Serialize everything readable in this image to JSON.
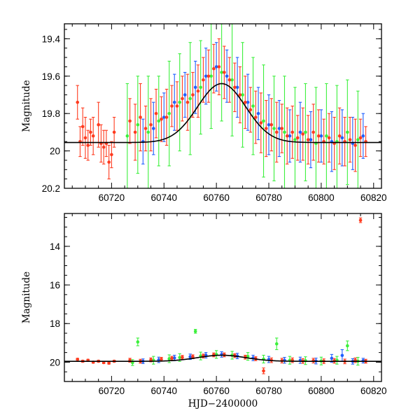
{
  "chart_data": [
    {
      "type": "scatter",
      "xlabel": "",
      "ylabel": "Magnitude",
      "xlim": [
        60702,
        60823
      ],
      "ylim": [
        20.2,
        19.32
      ],
      "y_inverted": true,
      "x_ticks": [
        60720,
        60740,
        60760,
        60780,
        60800,
        60820
      ],
      "y_ticks": [
        19.4,
        19.6,
        19.8,
        20,
        20.2
      ],
      "y_tick_labels": [
        "19.4",
        "19.6",
        "19.8",
        "20",
        "20.2"
      ],
      "grid": false,
      "legend": "none",
      "model_curve": {
        "color": "#000000",
        "peak_x": 60762,
        "peak_mag": 19.64,
        "base_mag": 19.955,
        "width_days": 13
      },
      "series": [
        {
          "color": "#ff3b1f",
          "points": [
            [
              60707,
              19.74,
              0.09
            ],
            [
              60708,
              19.95,
              0.08
            ],
            [
              60709,
              19.87,
              0.1
            ],
            [
              60710,
              19.93,
              0.11
            ],
            [
              60711,
              19.97,
              0.08
            ],
            [
              60712,
              19.9,
              0.07
            ],
            [
              60713,
              19.92,
              0.1
            ],
            [
              60715,
              19.86,
              0.12
            ],
            [
              60716,
              19.96,
              0.1
            ],
            [
              60717,
              19.98,
              0.09
            ],
            [
              60718,
              19.96,
              0.07
            ],
            [
              60719,
              20.06,
              0.09
            ],
            [
              60720,
              20.02,
              0.07
            ],
            [
              60721,
              19.9,
              0.08
            ],
            [
              60727,
              19.84,
              0.12
            ],
            [
              60729,
              19.9,
              0.15
            ],
            [
              60731,
              19.82,
              0.18
            ],
            [
              60733,
              19.88,
              0.12
            ],
            [
              60735,
              19.86,
              0.14
            ],
            [
              60737,
              19.8,
              0.13
            ],
            [
              60739,
              19.83,
              0.12
            ],
            [
              60741,
              19.82,
              0.15
            ],
            [
              60743,
              19.76,
              0.11
            ],
            [
              60745,
              19.76,
              0.13
            ],
            [
              60747,
              19.72,
              0.12
            ],
            [
              60749,
              19.74,
              0.15
            ],
            [
              60751,
              19.7,
              0.12
            ],
            [
              60753,
              19.68,
              0.14
            ],
            [
              60755,
              19.62,
              0.12
            ],
            [
              60757,
              19.6,
              0.14
            ],
            [
              60759,
              19.56,
              0.13
            ],
            [
              60761,
              19.55,
              0.15
            ],
            [
              60763,
              19.58,
              0.14
            ],
            [
              60765,
              19.62,
              0.12
            ],
            [
              60767,
              19.66,
              0.13
            ],
            [
              60769,
              19.7,
              0.15
            ],
            [
              60771,
              19.74,
              0.14
            ],
            [
              60773,
              19.78,
              0.12
            ],
            [
              60775,
              19.82,
              0.14
            ],
            [
              60777,
              19.85,
              0.16
            ],
            [
              60779,
              19.88,
              0.15
            ],
            [
              60781,
              19.86,
              0.14
            ],
            [
              60783,
              19.9,
              0.16
            ],
            [
              60785,
              19.88,
              0.13
            ],
            [
              60787,
              19.92,
              0.15
            ],
            [
              60789,
              19.9,
              0.14
            ],
            [
              60791,
              19.93,
              0.12
            ],
            [
              60793,
              19.91,
              0.14
            ],
            [
              60795,
              19.94,
              0.13
            ],
            [
              60797,
              19.9,
              0.15
            ],
            [
              60799,
              19.92,
              0.14
            ],
            [
              60801,
              19.95,
              0.12
            ],
            [
              60803,
              19.93,
              0.13
            ],
            [
              60805,
              19.96,
              0.14
            ],
            [
              60807,
              19.92,
              0.15
            ],
            [
              60809,
              19.95,
              0.13
            ],
            [
              60811,
              19.94,
              0.12
            ],
            [
              60813,
              19.97,
              0.14
            ],
            [
              60815,
              19.93,
              0.1
            ],
            [
              60817,
              19.95,
              0.08
            ]
          ]
        },
        {
          "color": "#1f5fff",
          "points": [
            [
              60732,
              19.95,
              0.12
            ],
            [
              60736,
              19.88,
              0.14
            ],
            [
              60740,
              19.82,
              0.13
            ],
            [
              60744,
              19.74,
              0.15
            ],
            [
              60748,
              19.7,
              0.12
            ],
            [
              60752,
              19.66,
              0.14
            ],
            [
              60756,
              19.6,
              0.15
            ],
            [
              60760,
              19.55,
              0.13
            ],
            [
              60764,
              19.6,
              0.14
            ],
            [
              60768,
              19.66,
              0.16
            ],
            [
              60772,
              19.74,
              0.15
            ],
            [
              60776,
              19.8,
              0.14
            ],
            [
              60780,
              19.86,
              0.16
            ],
            [
              60784,
              19.88,
              0.15
            ],
            [
              60788,
              19.92,
              0.14
            ],
            [
              60792,
              19.9,
              0.16
            ],
            [
              60796,
              19.94,
              0.15
            ],
            [
              60800,
              19.92,
              0.14
            ],
            [
              60804,
              19.95,
              0.16
            ],
            [
              60808,
              19.93,
              0.15
            ],
            [
              60812,
              19.96,
              0.14
            ],
            [
              60816,
              19.92,
              0.12
            ]
          ]
        },
        {
          "color": "#3cf03c",
          "points": [
            [
              60726,
              19.92,
              0.28
            ],
            [
              60730,
              19.86,
              0.26
            ],
            [
              60734,
              19.9,
              0.3
            ],
            [
              60738,
              19.84,
              0.24
            ],
            [
              60742,
              19.8,
              0.28
            ],
            [
              60746,
              19.74,
              0.26
            ],
            [
              60750,
              19.72,
              0.3
            ],
            [
              60754,
              19.66,
              0.25
            ],
            [
              60758,
              19.6,
              0.28
            ],
            [
              60762,
              19.58,
              0.26
            ],
            [
              60766,
              19.62,
              0.3
            ],
            [
              60770,
              19.7,
              0.28
            ],
            [
              60774,
              19.76,
              0.26
            ],
            [
              60778,
              19.84,
              0.3
            ],
            [
              60782,
              19.88,
              0.28
            ],
            [
              60786,
              19.9,
              0.3
            ],
            [
              60790,
              19.94,
              0.28
            ],
            [
              60794,
              19.9,
              0.26
            ],
            [
              60798,
              19.96,
              0.3
            ],
            [
              60802,
              19.92,
              0.28
            ],
            [
              60806,
              19.95,
              0.3
            ],
            [
              60810,
              19.9,
              0.28
            ],
            [
              60814,
              19.94,
              0.26
            ]
          ]
        }
      ]
    },
    {
      "type": "scatter",
      "xlabel": "HJD−2400000",
      "ylabel": "Magnitude",
      "xlim": [
        60702,
        60823
      ],
      "ylim": [
        21,
        12.3
      ],
      "y_inverted": true,
      "x_ticks": [
        60720,
        60740,
        60760,
        60780,
        60800,
        60820
      ],
      "y_ticks": [
        14,
        16,
        18,
        20
      ],
      "y_tick_labels": [
        "14",
        "16",
        "18",
        "20"
      ],
      "grid": false,
      "legend": "none",
      "model_curve": {
        "color": "#000000",
        "peak_x": 60762,
        "peak_mag": 19.64,
        "base_mag": 19.955,
        "width_days": 13
      },
      "series": [
        {
          "color": "#ff3b1f",
          "points": [
            [
              60707,
              19.85,
              0.05
            ],
            [
              60709,
              19.95,
              0.05
            ],
            [
              60711,
              19.9,
              0.05
            ],
            [
              60713,
              20,
              0.05
            ],
            [
              60715,
              19.95,
              0.05
            ],
            [
              60717,
              20.02,
              0.05
            ],
            [
              60719,
              20.05,
              0.05
            ],
            [
              60721,
              19.95,
              0.05
            ],
            [
              60727,
              19.9,
              0.1
            ],
            [
              60731,
              19.95,
              0.1
            ],
            [
              60735,
              19.88,
              0.1
            ],
            [
              60739,
              19.85,
              0.1
            ],
            [
              60743,
              19.8,
              0.1
            ],
            [
              60747,
              19.75,
              0.1
            ],
            [
              60751,
              19.72,
              0.1
            ],
            [
              60755,
              19.68,
              0.1
            ],
            [
              60759,
              19.62,
              0.1
            ],
            [
              60763,
              19.62,
              0.1
            ],
            [
              60767,
              19.66,
              0.1
            ],
            [
              60771,
              19.74,
              0.1
            ],
            [
              60775,
              19.82,
              0.1
            ],
            [
              60778,
              20.45,
              0.15
            ],
            [
              60781,
              19.9,
              0.12
            ],
            [
              60785,
              19.92,
              0.12
            ],
            [
              60789,
              19.9,
              0.12
            ],
            [
              60793,
              19.94,
              0.12
            ],
            [
              60797,
              19.92,
              0.12
            ],
            [
              60801,
              19.95,
              0.12
            ],
            [
              60805,
              19.93,
              0.12
            ],
            [
              60809,
              19.96,
              0.12
            ],
            [
              60813,
              19.9,
              0.12
            ],
            [
              60815,
              12.65,
              0.12
            ],
            [
              60817,
              19.95,
              0.1
            ]
          ]
        },
        {
          "color": "#1f5fff",
          "points": [
            [
              60732,
              19.95,
              0.12
            ],
            [
              60738,
              19.88,
              0.14
            ],
            [
              60744,
              19.78,
              0.14
            ],
            [
              60750,
              19.72,
              0.14
            ],
            [
              60756,
              19.64,
              0.14
            ],
            [
              60762,
              19.6,
              0.14
            ],
            [
              60768,
              19.68,
              0.14
            ],
            [
              60774,
              19.78,
              0.14
            ],
            [
              60780,
              19.86,
              0.16
            ],
            [
              60786,
              19.9,
              0.15
            ],
            [
              60792,
              19.9,
              0.16
            ],
            [
              60798,
              19.94,
              0.15
            ],
            [
              60804,
              19.8,
              0.2
            ],
            [
              60808,
              19.65,
              0.3
            ],
            [
              60812,
              19.96,
              0.14
            ],
            [
              60816,
              19.92,
              0.12
            ]
          ]
        },
        {
          "color": "#3cf03c",
          "points": [
            [
              60728,
              20.02,
              0.15
            ],
            [
              60730,
              18.95,
              0.2
            ],
            [
              60736,
              19.9,
              0.2
            ],
            [
              60742,
              19.82,
              0.2
            ],
            [
              60746,
              19.76,
              0.2
            ],
            [
              60752,
              18.4,
              0.1
            ],
            [
              60754,
              19.68,
              0.2
            ],
            [
              60760,
              19.6,
              0.2
            ],
            [
              60766,
              19.64,
              0.2
            ],
            [
              60772,
              19.7,
              0.2
            ],
            [
              60778,
              19.84,
              0.2
            ],
            [
              60783,
              19.05,
              0.3
            ],
            [
              60788,
              19.9,
              0.2
            ],
            [
              60794,
              19.92,
              0.2
            ],
            [
              60800,
              19.94,
              0.2
            ],
            [
              60806,
              19.9,
              0.2
            ],
            [
              60810,
              19.15,
              0.25
            ],
            [
              60814,
              19.95,
              0.2
            ]
          ]
        }
      ]
    }
  ]
}
